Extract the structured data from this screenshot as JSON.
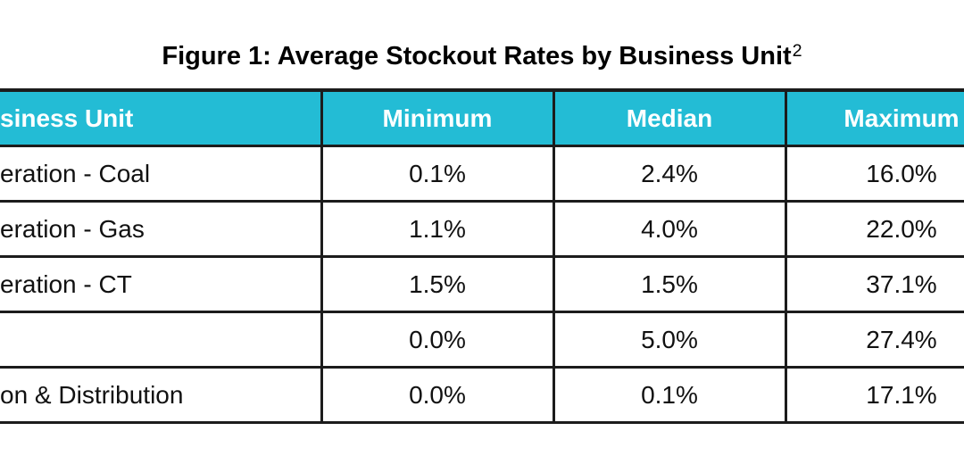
{
  "title": {
    "text": "Figure 1: Average Stockout Rates by Business Unit",
    "superscript": "2"
  },
  "table": {
    "columns": [
      "siness Unit",
      "Minimum",
      "Median",
      "Maximum"
    ],
    "rows": [
      {
        "business_unit": "eration - Coal",
        "minimum": "0.1%",
        "median": "2.4%",
        "maximum": "16.0%"
      },
      {
        "business_unit": "eration - Gas",
        "minimum": "1.1%",
        "median": "4.0%",
        "maximum": "22.0%"
      },
      {
        "business_unit": "eration - CT",
        "minimum": "1.5%",
        "median": "1.5%",
        "maximum": "37.1%"
      },
      {
        "business_unit": "",
        "minimum": "0.0%",
        "median": "5.0%",
        "maximum": "27.4%"
      },
      {
        "business_unit": "on & Distribution",
        "minimum": "0.0%",
        "median": "0.1%",
        "maximum": "17.1%"
      }
    ]
  },
  "colors": {
    "header_bg": "#23bcd5",
    "header_text": "#ffffff",
    "border": "#1c1c1c",
    "body_text": "#111111",
    "page_bg": "#ffffff"
  }
}
